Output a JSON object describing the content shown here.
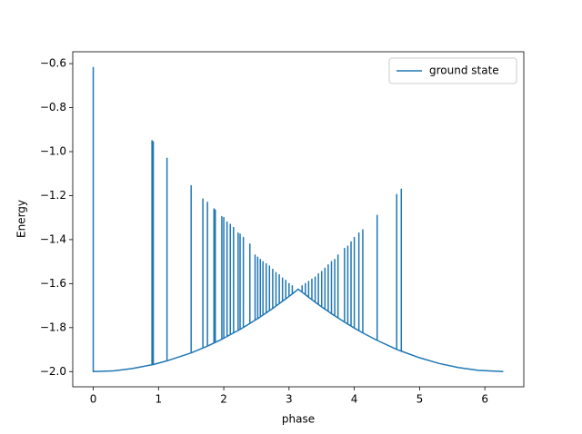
{
  "chart_data": {
    "type": "line",
    "xlabel": "phase",
    "ylabel": "Energy",
    "xlim": [
      -0.314,
      6.597
    ],
    "ylim": [
      -2.069,
      -0.546
    ],
    "xticks": [
      0,
      1,
      2,
      3,
      4,
      5,
      6
    ],
    "yticks": [
      {
        "value": -2.0,
        "label": "−2.0"
      },
      {
        "value": -1.8,
        "label": "−1.8"
      },
      {
        "value": -1.6,
        "label": "−1.6"
      },
      {
        "value": -1.4,
        "label": "−1.4"
      },
      {
        "value": -1.2,
        "label": "−1.2"
      },
      {
        "value": -1.0,
        "label": "−1.0"
      },
      {
        "value": -0.8,
        "label": "−0.8"
      },
      {
        "value": -0.6,
        "label": "−0.6"
      }
    ],
    "grid": false,
    "legend": "upper right",
    "x": [
      0,
      0,
      0.3,
      0.6,
      0.9,
      0.9,
      0.9,
      0.92,
      0.92,
      0.92,
      1.13,
      1.13,
      1.13,
      1.5,
      1.5,
      1.5,
      1.68,
      1.68,
      1.68,
      1.75,
      1.75,
      1.75,
      1.85,
      1.85,
      1.85,
      1.87,
      1.87,
      1.87,
      1.97,
      1.97,
      1.97,
      2.0,
      2.0,
      2.0,
      2.05,
      2.05,
      2.05,
      2.1,
      2.1,
      2.1,
      2.15,
      2.15,
      2.15,
      2.22,
      2.22,
      2.22,
      2.25,
      2.25,
      2.25,
      2.3,
      2.3,
      2.3,
      2.4,
      2.4,
      2.4,
      2.48,
      2.48,
      2.48,
      2.52,
      2.52,
      2.52,
      2.56,
      2.56,
      2.56,
      2.6,
      2.6,
      2.6,
      2.65,
      2.65,
      2.65,
      2.7,
      2.7,
      2.7,
      2.75,
      2.75,
      2.75,
      2.8,
      2.8,
      2.8,
      2.85,
      2.85,
      2.85,
      2.9,
      2.9,
      2.9,
      2.95,
      2.95,
      2.95,
      3.0,
      3.0,
      3.0,
      3.05,
      3.05,
      3.05,
      3.14,
      3.2,
      3.2,
      3.2,
      3.25,
      3.25,
      3.25,
      3.3,
      3.3,
      3.3,
      3.35,
      3.35,
      3.35,
      3.4,
      3.4,
      3.4,
      3.45,
      3.45,
      3.45,
      3.5,
      3.5,
      3.5,
      3.55,
      3.55,
      3.55,
      3.6,
      3.6,
      3.6,
      3.65,
      3.65,
      3.65,
      3.7,
      3.7,
      3.7,
      3.75,
      3.75,
      3.75,
      3.85,
      3.85,
      3.85,
      3.9,
      3.9,
      3.9,
      3.95,
      3.95,
      3.95,
      4.0,
      4.0,
      4.0,
      4.07,
      4.07,
      4.07,
      4.13,
      4.13,
      4.13,
      4.35,
      4.35,
      4.35,
      4.65,
      4.65,
      4.65,
      4.72,
      4.72,
      4.72,
      5.0,
      5.3,
      5.6,
      5.9,
      6.283
    ],
    "series": [
      {
        "name": "ground state",
        "color": "#1f77b4",
        "values": [
          -0.615,
          -2,
          -1.997,
          -1.986,
          -1.969,
          -0.95,
          -1.969,
          -1.968,
          -0.955,
          -1.968,
          -1.951,
          -1.03,
          -1.951,
          -1.915,
          -1.155,
          -1.915,
          -1.893,
          -1.215,
          -1.893,
          -1.884,
          -1.23,
          -1.884,
          -1.87,
          -1.26,
          -1.87,
          -1.867,
          -1.265,
          -1.867,
          -1.853,
          -1.295,
          -1.853,
          -1.848,
          -1.3,
          -1.848,
          -1.84,
          -1.32,
          -1.84,
          -1.832,
          -1.33,
          -1.832,
          -1.824,
          -1.345,
          -1.824,
          -1.813,
          -1.37,
          -1.813,
          -1.808,
          -1.375,
          -1.808,
          -1.799,
          -1.39,
          -1.799,
          -1.781,
          -1.42,
          -1.781,
          -1.766,
          -1.47,
          -1.766,
          -1.759,
          -1.48,
          -1.759,
          -1.751,
          -1.49,
          -1.751,
          -1.743,
          -1.5,
          -1.743,
          -1.733,
          -1.51,
          -1.733,
          -1.723,
          -1.52,
          -1.723,
          -1.713,
          -1.535,
          -1.713,
          -1.702,
          -1.55,
          -1.702,
          -1.691,
          -1.56,
          -1.691,
          -1.68,
          -1.575,
          -1.68,
          -1.669,
          -1.585,
          -1.669,
          -1.658,
          -1.6,
          -1.658,
          -1.647,
          -1.61,
          -1.647,
          -1.625,
          -1.639,
          -1.61,
          -1.639,
          -1.65,
          -1.6,
          -1.65,
          -1.662,
          -1.59,
          -1.662,
          -1.673,
          -1.58,
          -1.673,
          -1.684,
          -1.57,
          -1.684,
          -1.695,
          -1.555,
          -1.695,
          -1.706,
          -1.545,
          -1.706,
          -1.716,
          -1.53,
          -1.716,
          -1.726,
          -1.515,
          -1.726,
          -1.737,
          -1.5,
          -1.737,
          -1.746,
          -1.49,
          -1.746,
          -1.756,
          -1.47,
          -1.756,
          -1.775,
          -1.44,
          -1.775,
          -1.784,
          -1.43,
          -1.784,
          -1.793,
          -1.41,
          -1.793,
          -1.802,
          -1.39,
          -1.802,
          -1.814,
          -1.37,
          -1.814,
          -1.824,
          -1.355,
          -1.824,
          -1.858,
          -1.29,
          -1.858,
          -1.899,
          -1.195,
          -1.899,
          -1.907,
          -1.17,
          -1.907,
          -1.937,
          -1.963,
          -1.982,
          -1.994,
          -2
        ]
      }
    ]
  }
}
